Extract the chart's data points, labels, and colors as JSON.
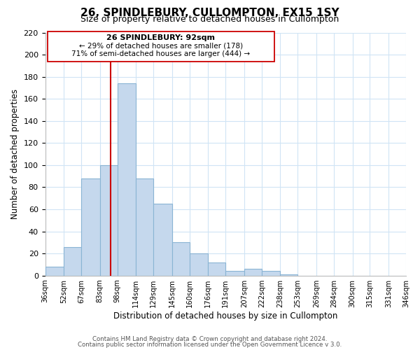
{
  "title": "26, SPINDLEBURY, CULLOMPTON, EX15 1SY",
  "subtitle": "Size of property relative to detached houses in Cullompton",
  "xlabel": "Distribution of detached houses by size in Cullompton",
  "ylabel": "Number of detached properties",
  "bar_heights": [
    8,
    26,
    88,
    100,
    174,
    88,
    65,
    30,
    20,
    12,
    4,
    6,
    4,
    1
  ],
  "bar_left_edges": [
    36,
    52,
    67,
    83,
    98,
    114,
    129,
    145,
    160,
    176,
    191,
    207,
    222,
    238
  ],
  "bar_right_edges": [
    52,
    67,
    83,
    98,
    114,
    129,
    145,
    160,
    176,
    191,
    207,
    222,
    238,
    253
  ],
  "x_tick_positions": [
    36,
    52,
    67,
    83,
    98,
    114,
    129,
    145,
    160,
    176,
    191,
    207,
    222,
    238,
    253,
    269,
    284,
    300,
    315,
    331,
    346
  ],
  "x_tick_labels": [
    "36sqm",
    "52sqm",
    "67sqm",
    "83sqm",
    "98sqm",
    "114sqm",
    "129sqm",
    "145sqm",
    "160sqm",
    "176sqm",
    "191sqm",
    "207sqm",
    "222sqm",
    "238sqm",
    "253sqm",
    "269sqm",
    "284sqm",
    "300sqm",
    "315sqm",
    "331sqm",
    "346sqm"
  ],
  "bar_color": "#c5d8ed",
  "bar_edgecolor": "#8ab4d4",
  "vline_x": 92,
  "vline_color": "#cc0000",
  "xlim": [
    36,
    346
  ],
  "ylim": [
    0,
    220
  ],
  "yticks": [
    0,
    20,
    40,
    60,
    80,
    100,
    120,
    140,
    160,
    180,
    200,
    220
  ],
  "annotation_title": "26 SPINDLEBURY: 92sqm",
  "annotation_line1": "← 29% of detached houses are smaller (178)",
  "annotation_line2": "71% of semi-detached houses are larger (444) →",
  "footer_line1": "Contains HM Land Registry data © Crown copyright and database right 2024.",
  "footer_line2": "Contains public sector information licensed under the Open Government Licence v 3.0.",
  "background_color": "#ffffff",
  "grid_color": "#d0e4f5"
}
